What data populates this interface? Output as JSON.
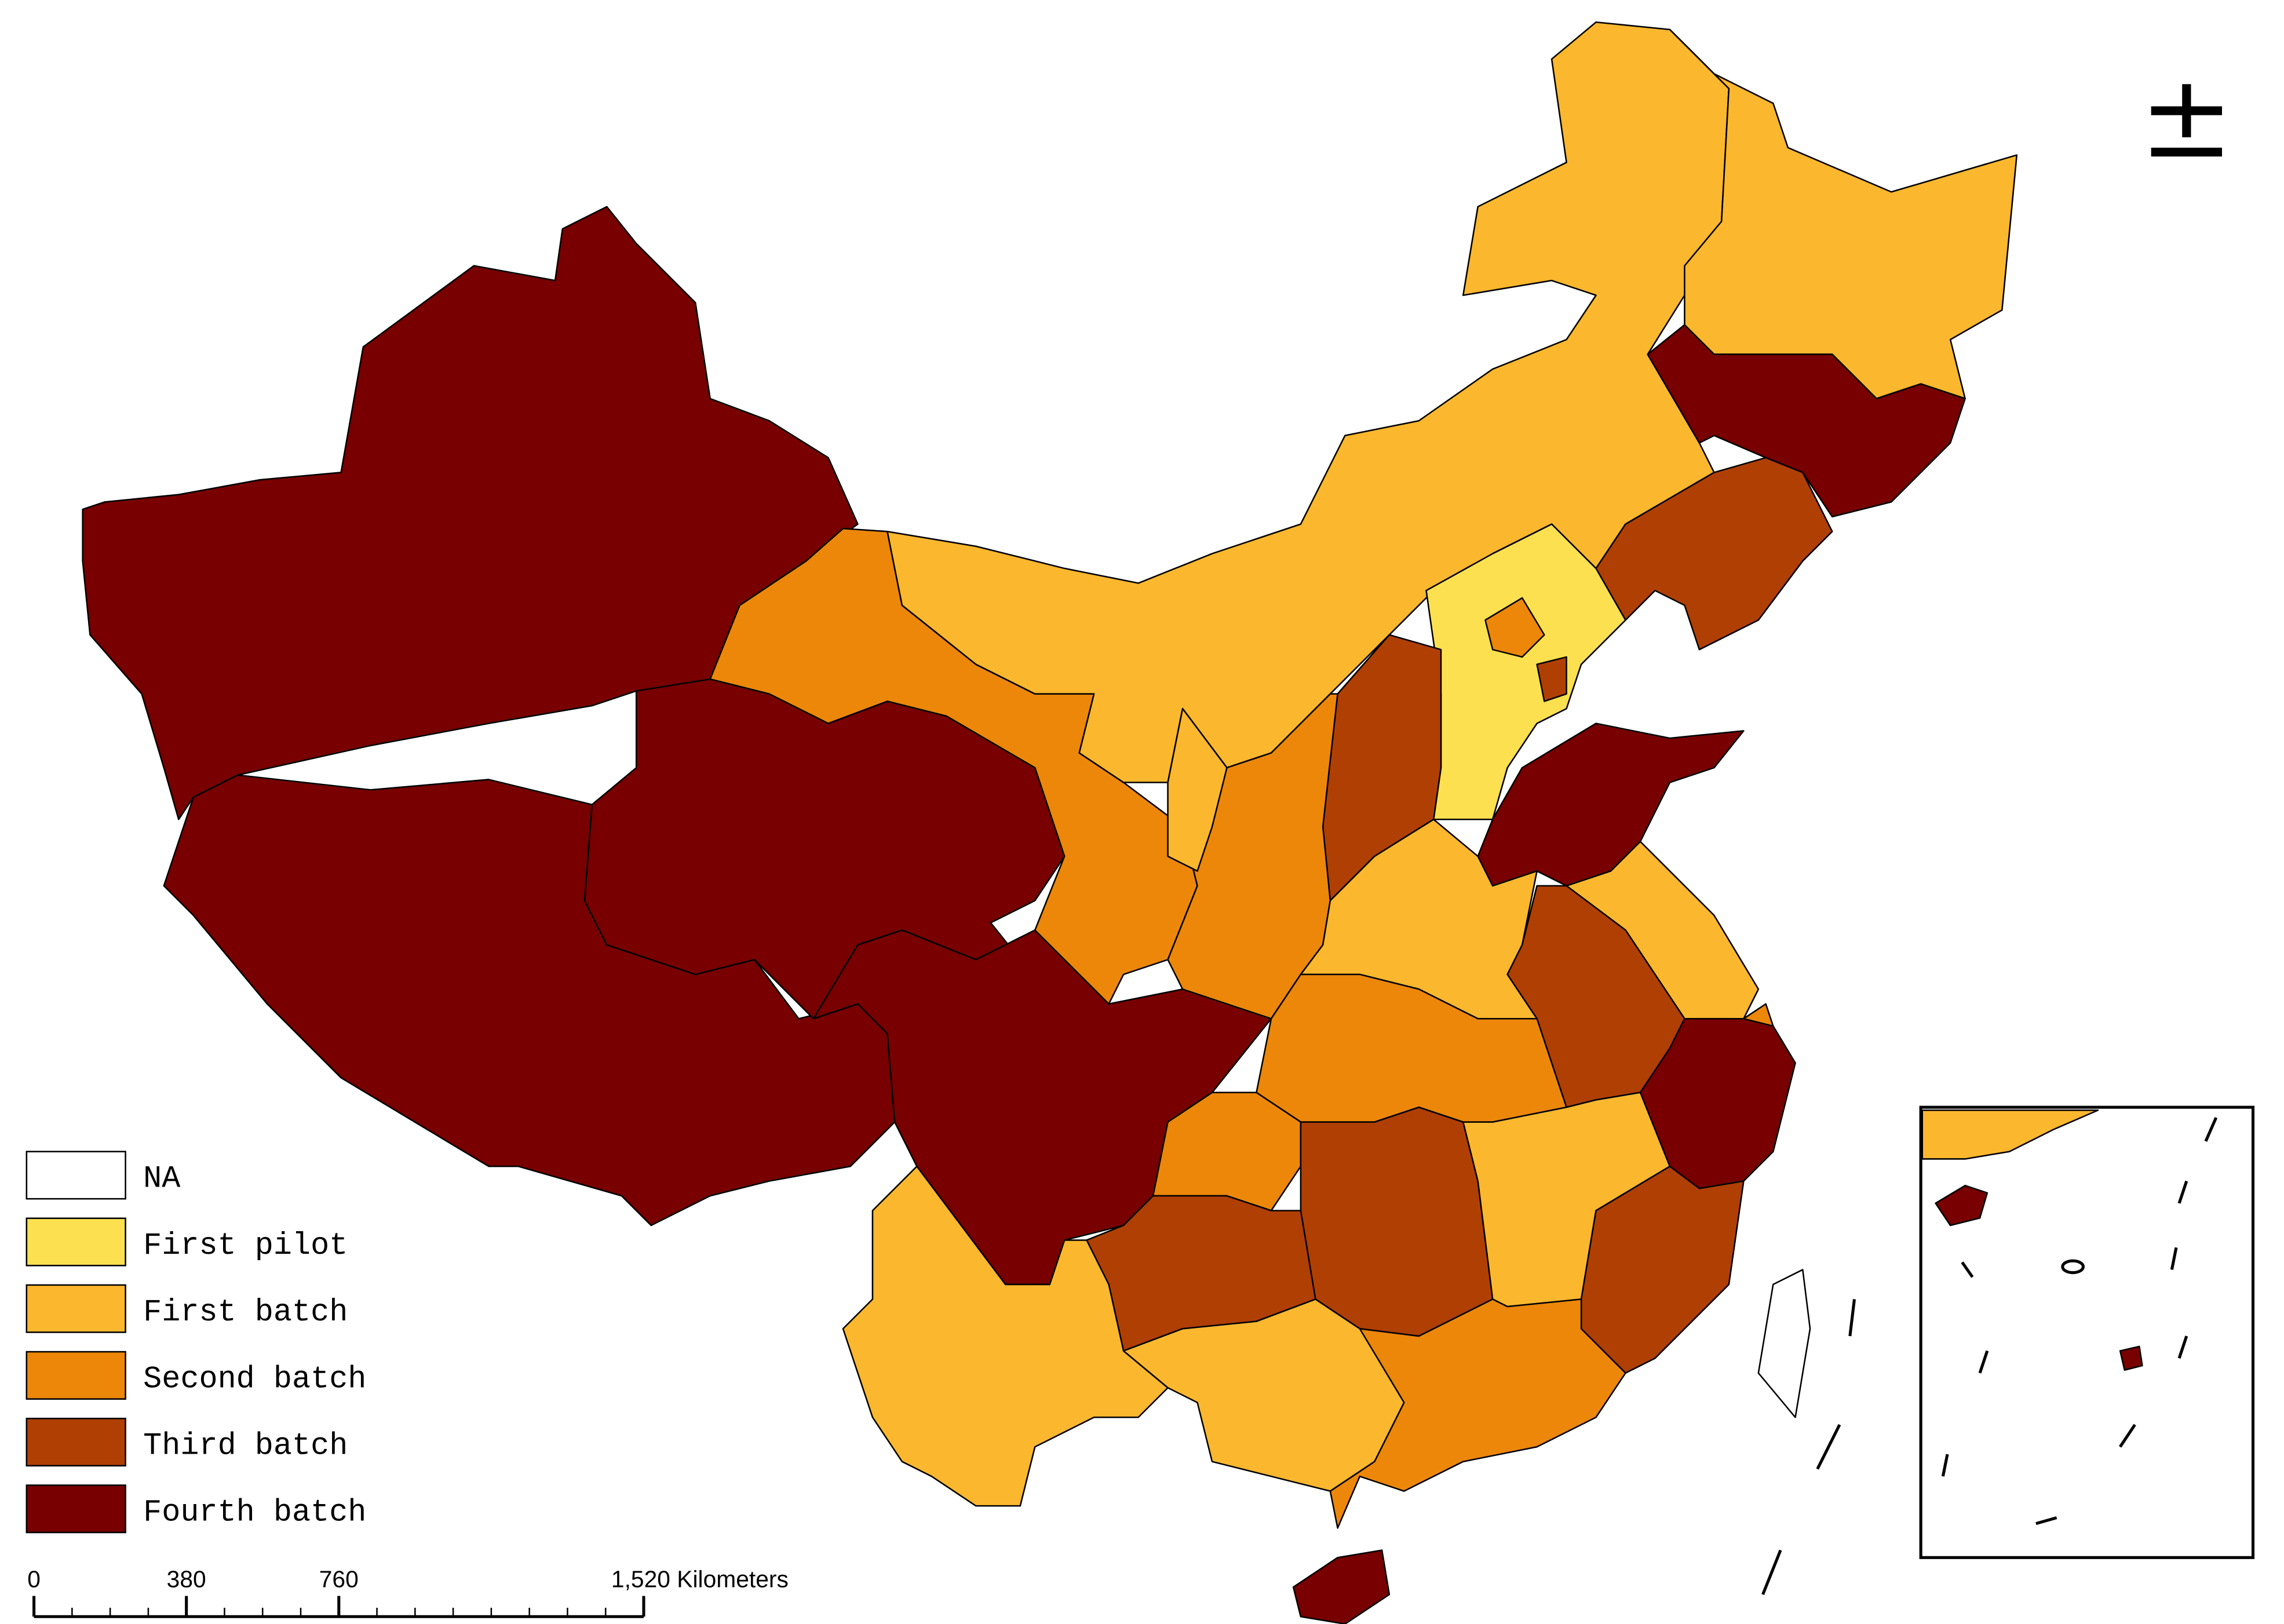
{
  "legend": [
    {
      "label": "NA",
      "color": "#ffffff"
    },
    {
      "label": "First pilot",
      "color": "#fde050"
    },
    {
      "label": "First batch",
      "color": "#fbb72e"
    },
    {
      "label": "Second batch",
      "color": "#ec870a"
    },
    {
      "label": "Third batch",
      "color": "#b03f04"
    },
    {
      "label": "Fourth batch",
      "color": "#780000"
    }
  ],
  "scale_bar": {
    "ticks": [
      0,
      380,
      760,
      {
        "value": 1520,
        "label": "1,520 Kilometers"
      }
    ]
  }
}
